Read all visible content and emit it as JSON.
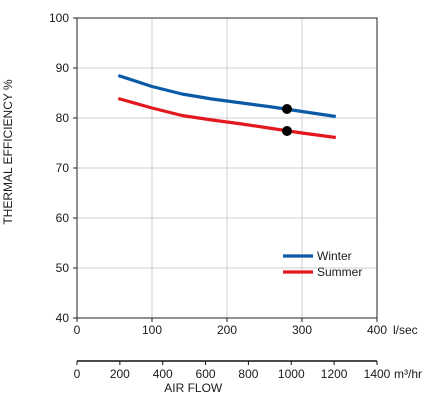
{
  "chart_data": {
    "type": "line",
    "xlabel": "AIR FLOW",
    "ylabel": "THERMAL EFFICIENCY %",
    "x_unit": "l/sec",
    "x2_unit": "m³/hr",
    "xlim": [
      0,
      400
    ],
    "ylim": [
      40,
      100
    ],
    "x_ticks": [
      0,
      100,
      200,
      300,
      400
    ],
    "y_ticks": [
      40,
      50,
      60,
      70,
      80,
      90,
      100
    ],
    "x2_ticks": [
      0,
      200,
      400,
      600,
      800,
      1000,
      1200,
      1400
    ],
    "grid": true,
    "legend_position": "lower-right",
    "series": [
      {
        "name": "Winter",
        "color": "#0a5aa8",
        "x": [
          55,
          100,
          140,
          180,
          220,
          260,
          300,
          345
        ],
        "y": [
          88.5,
          86.3,
          84.8,
          83.8,
          83.0,
          82.2,
          81.3,
          80.3
        ]
      },
      {
        "name": "Summer",
        "color": "#e3171e",
        "x": [
          55,
          100,
          140,
          180,
          220,
          260,
          300,
          345
        ],
        "y": [
          83.9,
          82.0,
          80.5,
          79.6,
          78.8,
          77.9,
          77.0,
          76.1
        ]
      }
    ],
    "markers": [
      {
        "x": 280,
        "y": 81.8
      },
      {
        "x": 280,
        "y": 77.4
      }
    ]
  }
}
